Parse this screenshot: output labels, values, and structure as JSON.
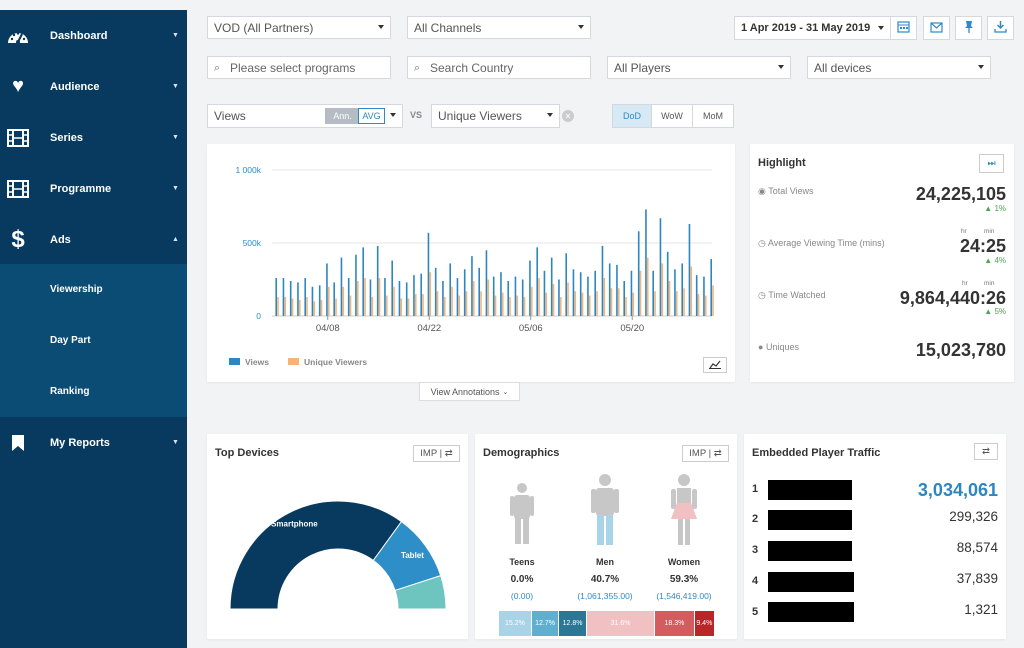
{
  "sidebar": {
    "items": [
      {
        "label": "Dashboard",
        "icon": "dashboard-icon"
      },
      {
        "label": "Audience",
        "icon": "heart-icon"
      },
      {
        "label": "Series",
        "icon": "film-icon"
      },
      {
        "label": "Programme",
        "icon": "film-icon"
      },
      {
        "label": "Ads",
        "icon": "dollar-icon"
      }
    ],
    "sub_items": [
      {
        "label": "Viewership"
      },
      {
        "label": "Day Part"
      },
      {
        "label": "Ranking"
      }
    ],
    "reports": {
      "label": "My Reports",
      "icon": "bookmark-icon"
    }
  },
  "filters": {
    "partner": "VOD (All Partners)",
    "channels": "All Channels",
    "date_range": "1 Apr 2019 - 31 May 2019",
    "programs_placeholder": "Please select programs",
    "country_placeholder": "Search Country",
    "players": "All Players",
    "devices": "All devices"
  },
  "compare": {
    "metric": "Views",
    "ann": "Ann.",
    "avg": "AVG",
    "vs": "VS",
    "metric2": "Unique Viewers",
    "periods": [
      "DoD",
      "WoW",
      "MoM"
    ]
  },
  "chart_data": {
    "type": "bar",
    "x": [
      "04/01",
      "04/02",
      "04/03",
      "04/04",
      "04/05",
      "04/06",
      "04/07",
      "04/08",
      "04/09",
      "04/10",
      "04/11",
      "04/12",
      "04/13",
      "04/14",
      "04/15",
      "04/16",
      "04/17",
      "04/18",
      "04/19",
      "04/20",
      "04/21",
      "04/22",
      "04/23",
      "04/24",
      "04/25",
      "04/26",
      "04/27",
      "04/28",
      "04/29",
      "04/30",
      "05/01",
      "05/02",
      "05/03",
      "05/04",
      "05/05",
      "05/06",
      "05/07",
      "05/08",
      "05/09",
      "05/10",
      "05/11",
      "05/12",
      "05/13",
      "05/14",
      "05/15",
      "05/16",
      "05/17",
      "05/18",
      "05/19",
      "05/20",
      "05/21",
      "05/22",
      "05/23",
      "05/24",
      "05/25",
      "05/26",
      "05/27",
      "05/28",
      "05/29",
      "05/30",
      "05/31"
    ],
    "xticks": [
      "04/08",
      "04/22",
      "05/06",
      "05/20"
    ],
    "series": [
      {
        "name": "Views",
        "color": "#2e86c1",
        "values": [
          260,
          260,
          240,
          230,
          260,
          200,
          210,
          360,
          230,
          400,
          260,
          420,
          470,
          250,
          480,
          260,
          380,
          240,
          230,
          280,
          290,
          570,
          330,
          240,
          360,
          260,
          320,
          410,
          330,
          450,
          270,
          300,
          240,
          270,
          250,
          380,
          470,
          310,
          400,
          250,
          430,
          320,
          300,
          270,
          310,
          480,
          360,
          350,
          240,
          310,
          580,
          730,
          310,
          670,
          440,
          320,
          360,
          630,
          280,
          270,
          390
        ]
      },
      {
        "name": "Unique Viewers",
        "color": "#f5b47a",
        "values": [
          130,
          130,
          120,
          110,
          130,
          100,
          110,
          200,
          120,
          200,
          140,
          240,
          260,
          130,
          260,
          140,
          200,
          120,
          120,
          150,
          150,
          300,
          170,
          130,
          200,
          140,
          170,
          240,
          170,
          250,
          140,
          160,
          130,
          140,
          130,
          200,
          260,
          160,
          220,
          130,
          230,
          170,
          160,
          140,
          170,
          260,
          190,
          190,
          130,
          160,
          310,
          400,
          170,
          360,
          240,
          170,
          190,
          340,
          150,
          140,
          210
        ]
      }
    ],
    "ylim": [
      0,
      1000
    ],
    "yticks": [
      "0",
      "500k",
      "1 000k"
    ],
    "legend": "bottom-left",
    "grid": true
  },
  "annotations_label": "View Annotations",
  "highlight": {
    "title": "Highlight",
    "total_views": {
      "label": "Total Views",
      "value": "24,225,105",
      "change": "▲ 1%"
    },
    "avg_time": {
      "label": "Average Viewing Time (mins)",
      "value": "24:25",
      "change": "▲ 4%",
      "hr": "hr",
      "min": "min"
    },
    "time_watched": {
      "label": "Time Watched",
      "value": "9,864,440:26",
      "change": "▲ 5%",
      "hr": "hr",
      "min": "min"
    },
    "uniques": {
      "label": "Uniques",
      "value": "15,023,780"
    }
  },
  "devices": {
    "title": "Top Devices",
    "toggle": "IMP | ⇄",
    "slices": [
      {
        "label": "Smartphone",
        "value": 70,
        "color": "#073a5e"
      },
      {
        "label": "Tablet",
        "value": 20,
        "color": "#2e8fc8"
      },
      {
        "label": "",
        "value": 10,
        "color": "#6ec5c0"
      }
    ]
  },
  "demographics": {
    "title": "Demographics",
    "toggle": "IMP | ⇄",
    "groups": [
      {
        "label": "Teens",
        "pct": "0.0%",
        "abs": "(0.00)"
      },
      {
        "label": "Men",
        "pct": "40.7%",
        "abs": "(1,061,355.00)"
      },
      {
        "label": "Women",
        "pct": "59.3%",
        "abs": "(1,546,419.00)"
      }
    ],
    "bars": [
      {
        "label": "15.2%",
        "value": 15.2,
        "color": "#a9d3e6"
      },
      {
        "label": "12.7%",
        "value": 12.7,
        "color": "#5fb0d0"
      },
      {
        "label": "12.8%",
        "value": 12.8,
        "color": "#2a7896"
      },
      {
        "label": "31.6%",
        "value": 31.6,
        "color": "#f0c0c2"
      },
      {
        "label": "18.3%",
        "value": 18.3,
        "color": "#d35c5e"
      },
      {
        "label": "9.4%",
        "value": 9.4,
        "color": "#b82628"
      }
    ]
  },
  "embedded": {
    "title": "Embedded Player Traffic",
    "toggle": "⇄",
    "rows": [
      {
        "rank": "1",
        "value": "3,034,061"
      },
      {
        "rank": "2",
        "value": "299,326"
      },
      {
        "rank": "3",
        "value": "88,574"
      },
      {
        "rank": "4",
        "value": "37,839"
      },
      {
        "rank": "5",
        "value": "1,321"
      }
    ]
  }
}
